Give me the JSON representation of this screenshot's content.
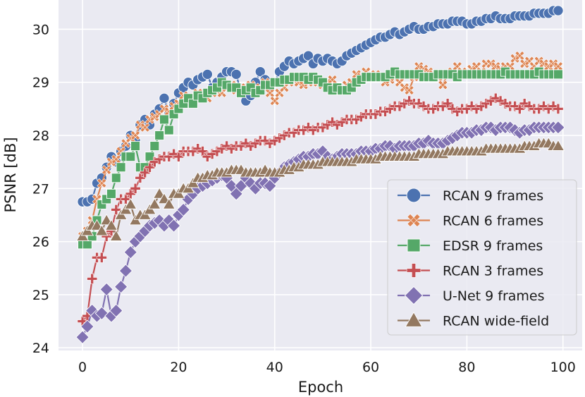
{
  "chart_data": {
    "type": "line",
    "title": "",
    "xlabel": "Epoch",
    "ylabel": "PSNR [dB]",
    "xlim": [
      -5,
      104
    ],
    "ylim": [
      23.95,
      30.55
    ],
    "xticks": [
      0,
      20,
      40,
      60,
      80,
      100
    ],
    "yticks": [
      24,
      25,
      26,
      27,
      28,
      29,
      30
    ],
    "grid": true,
    "legend_position": "lower-right",
    "x": [
      0,
      1,
      2,
      3,
      4,
      5,
      6,
      7,
      8,
      9,
      10,
      11,
      12,
      13,
      14,
      15,
      16,
      17,
      18,
      19,
      20,
      21,
      22,
      23,
      24,
      25,
      26,
      27,
      28,
      29,
      30,
      31,
      32,
      33,
      34,
      35,
      36,
      37,
      38,
      39,
      40,
      41,
      42,
      43,
      44,
      45,
      46,
      47,
      48,
      49,
      50,
      51,
      52,
      53,
      54,
      55,
      56,
      57,
      58,
      59,
      60,
      61,
      62,
      63,
      64,
      65,
      66,
      67,
      68,
      69,
      70,
      71,
      72,
      73,
      74,
      75,
      76,
      77,
      78,
      79,
      80,
      81,
      82,
      83,
      84,
      85,
      86,
      87,
      88,
      89,
      90,
      91,
      92,
      93,
      94,
      95,
      96,
      97,
      98,
      99
    ],
    "series": [
      {
        "name": "RCAN 9 frames",
        "color": "#4c72b0",
        "marker": "circle",
        "values": [
          26.75,
          26.75,
          26.8,
          27.1,
          27.2,
          27.4,
          27.6,
          27.5,
          27.7,
          27.8,
          28.0,
          27.9,
          28.2,
          28.3,
          28.2,
          28.4,
          28.5,
          28.7,
          28.4,
          28.6,
          28.8,
          28.9,
          29.0,
          28.95,
          29.05,
          29.1,
          29.15,
          28.9,
          29.0,
          29.1,
          29.2,
          29.2,
          29.15,
          28.8,
          28.65,
          28.75,
          29.0,
          29.2,
          29.05,
          28.9,
          29.0,
          29.2,
          29.3,
          29.4,
          29.35,
          29.4,
          29.45,
          29.5,
          29.35,
          29.45,
          29.4,
          29.45,
          29.4,
          29.35,
          29.4,
          29.5,
          29.55,
          29.6,
          29.65,
          29.7,
          29.75,
          29.8,
          29.85,
          29.85,
          29.9,
          29.95,
          29.9,
          29.95,
          30.0,
          30.05,
          30.0,
          30.0,
          30.05,
          30.05,
          30.1,
          30.1,
          30.1,
          30.15,
          30.15,
          30.15,
          30.1,
          30.1,
          30.15,
          30.15,
          30.2,
          30.2,
          30.25,
          30.2,
          30.2,
          30.2,
          30.25,
          30.25,
          30.25,
          30.25,
          30.3,
          30.3,
          30.3,
          30.3,
          30.35,
          30.35
        ]
      },
      {
        "name": "RCAN 6 frames",
        "color": "#dd8452",
        "marker": "x",
        "values": [
          26.1,
          26.2,
          26.4,
          26.8,
          27.1,
          27.35,
          27.5,
          27.55,
          27.7,
          27.85,
          27.95,
          28.0,
          28.2,
          28.15,
          28.3,
          28.35,
          28.4,
          28.5,
          28.45,
          28.55,
          28.6,
          28.75,
          28.7,
          28.65,
          28.8,
          28.75,
          28.7,
          28.8,
          28.85,
          28.8,
          28.9,
          28.95,
          28.85,
          28.8,
          28.9,
          28.95,
          28.85,
          28.9,
          29.0,
          28.8,
          28.65,
          28.8,
          28.9,
          29.0,
          29.05,
          29.0,
          28.95,
          29.0,
          29.1,
          29.0,
          28.95,
          29.0,
          29.05,
          28.9,
          28.85,
          28.95,
          29.0,
          29.15,
          29.1,
          29.2,
          29.1,
          29.15,
          29.1,
          29.0,
          29.05,
          29.1,
          29.0,
          28.9,
          28.85,
          29.1,
          29.3,
          29.25,
          29.2,
          29.15,
          29.1,
          28.95,
          29.15,
          29.2,
          29.3,
          29.2,
          29.15,
          29.25,
          29.3,
          29.2,
          29.35,
          29.35,
          29.3,
          29.25,
          29.3,
          29.3,
          29.45,
          29.5,
          29.35,
          29.4,
          29.3,
          29.4,
          29.35,
          29.3,
          29.35,
          29.3
        ]
      },
      {
        "name": "EDSR 9 frames",
        "color": "#55a868",
        "marker": "square",
        "values": [
          25.95,
          25.95,
          26.1,
          26.4,
          26.7,
          26.8,
          26.9,
          27.2,
          27.4,
          27.6,
          27.6,
          27.8,
          27.4,
          27.4,
          27.6,
          27.8,
          28.0,
          28.3,
          28.1,
          28.4,
          28.5,
          28.6,
          28.7,
          28.6,
          28.75,
          28.7,
          28.8,
          28.85,
          28.9,
          29.0,
          28.95,
          28.9,
          28.9,
          28.8,
          28.85,
          28.9,
          28.8,
          28.85,
          28.95,
          28.95,
          29.0,
          29.0,
          29.05,
          29.05,
          29.1,
          29.1,
          29.1,
          29.05,
          29.1,
          29.05,
          29.0,
          28.9,
          28.85,
          28.9,
          28.85,
          28.85,
          28.9,
          29.0,
          29.05,
          29.1,
          29.1,
          29.1,
          29.1,
          29.1,
          29.15,
          29.2,
          29.15,
          29.15,
          29.15,
          29.15,
          29.15,
          29.1,
          29.1,
          29.1,
          29.15,
          29.15,
          29.15,
          29.15,
          29.1,
          29.15,
          29.15,
          29.15,
          29.15,
          29.15,
          29.15,
          29.15,
          29.15,
          29.15,
          29.2,
          29.15,
          29.15,
          29.15,
          29.15,
          29.15,
          29.15,
          29.2,
          29.15,
          29.15,
          29.15,
          29.15
        ]
      },
      {
        "name": "RCAN 3 frames",
        "color": "#c44e52",
        "marker": "plus",
        "values": [
          24.5,
          24.6,
          25.3,
          25.7,
          25.7,
          26.1,
          26.2,
          26.6,
          26.8,
          26.8,
          26.9,
          27.0,
          27.2,
          27.3,
          27.4,
          27.5,
          27.55,
          27.6,
          27.6,
          27.65,
          27.6,
          27.7,
          27.7,
          27.7,
          27.75,
          27.7,
          27.6,
          27.65,
          27.7,
          27.75,
          27.8,
          27.75,
          27.8,
          27.8,
          27.85,
          27.8,
          27.85,
          27.9,
          27.9,
          27.85,
          27.9,
          27.95,
          28.0,
          28.05,
          28.05,
          28.1,
          28.1,
          28.15,
          28.1,
          28.15,
          28.15,
          28.2,
          28.25,
          28.2,
          28.25,
          28.3,
          28.3,
          28.3,
          28.35,
          28.4,
          28.4,
          28.4,
          28.45,
          28.45,
          28.5,
          28.55,
          28.55,
          28.6,
          28.65,
          28.6,
          28.6,
          28.55,
          28.5,
          28.5,
          28.55,
          28.55,
          28.6,
          28.5,
          28.45,
          28.5,
          28.5,
          28.55,
          28.5,
          28.55,
          28.6,
          28.65,
          28.7,
          28.65,
          28.6,
          28.55,
          28.55,
          28.5,
          28.6,
          28.55,
          28.5,
          28.5,
          28.55,
          28.5,
          28.55,
          28.5
        ]
      },
      {
        "name": "U-Net 9 frames",
        "color": "#8172b2",
        "marker": "diamond",
        "values": [
          24.2,
          24.4,
          24.7,
          24.6,
          24.65,
          25.1,
          24.6,
          24.7,
          25.15,
          25.45,
          25.8,
          26.0,
          26.1,
          26.2,
          26.3,
          26.35,
          26.4,
          26.3,
          26.4,
          26.3,
          26.5,
          26.6,
          26.8,
          26.9,
          27.0,
          27.05,
          27.1,
          27.15,
          27.2,
          27.25,
          27.2,
          27.05,
          26.9,
          27.05,
          27.2,
          27.1,
          27.0,
          27.1,
          27.1,
          27.05,
          27.2,
          27.3,
          27.4,
          27.45,
          27.5,
          27.55,
          27.6,
          27.6,
          27.65,
          27.65,
          27.7,
          27.6,
          27.55,
          27.6,
          27.65,
          27.65,
          27.65,
          27.65,
          27.7,
          27.7,
          27.7,
          27.75,
          27.75,
          27.8,
          27.8,
          27.75,
          27.8,
          27.8,
          27.8,
          27.8,
          27.85,
          27.85,
          27.9,
          27.85,
          27.85,
          27.85,
          27.9,
          27.95,
          28.0,
          28.05,
          28.05,
          28.05,
          28.1,
          28.1,
          28.15,
          28.15,
          28.1,
          28.15,
          28.15,
          28.15,
          28.1,
          28.05,
          28.1,
          28.1,
          28.15,
          28.15,
          28.15,
          28.15,
          28.15,
          28.15
        ]
      },
      {
        "name": "RCAN wide-field",
        "color": "#937860",
        "marker": "triangle",
        "values": [
          26.1,
          26.2,
          26.3,
          26.3,
          26.2,
          26.4,
          26.3,
          26.1,
          26.5,
          26.6,
          26.7,
          26.4,
          26.5,
          26.5,
          26.6,
          26.7,
          26.9,
          26.8,
          26.7,
          26.9,
          26.9,
          27.0,
          27.0,
          27.1,
          27.2,
          27.2,
          27.25,
          27.25,
          27.3,
          27.3,
          27.3,
          27.35,
          27.35,
          27.35,
          27.3,
          27.3,
          27.3,
          27.3,
          27.35,
          27.3,
          27.3,
          27.3,
          27.35,
          27.35,
          27.4,
          27.4,
          27.45,
          27.45,
          27.45,
          27.45,
          27.5,
          27.5,
          27.5,
          27.5,
          27.5,
          27.5,
          27.5,
          27.55,
          27.55,
          27.55,
          27.55,
          27.55,
          27.6,
          27.6,
          27.6,
          27.6,
          27.6,
          27.6,
          27.6,
          27.6,
          27.65,
          27.65,
          27.65,
          27.65,
          27.65,
          27.65,
          27.7,
          27.7,
          27.7,
          27.7,
          27.7,
          27.7,
          27.7,
          27.7,
          27.75,
          27.75,
          27.75,
          27.75,
          27.75,
          27.75,
          27.75,
          27.75,
          27.8,
          27.8,
          27.8,
          27.85,
          27.85,
          27.85,
          27.8,
          27.8
        ]
      }
    ]
  }
}
